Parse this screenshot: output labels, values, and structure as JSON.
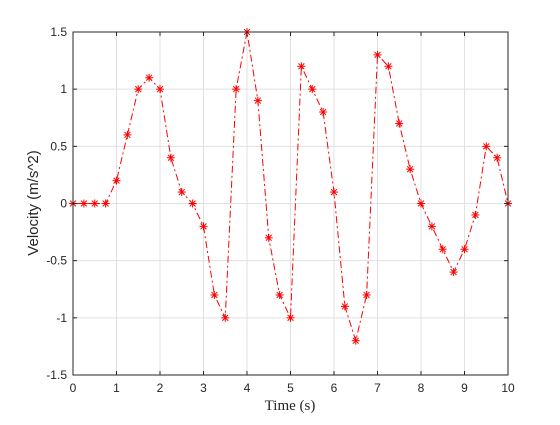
{
  "chart_data": {
    "type": "line",
    "title": "",
    "xlabel": "Time (s)",
    "ylabel": "Velocity (m/s^2)",
    "xlim": [
      0,
      10
    ],
    "ylim": [
      -1.5,
      1.5
    ],
    "xticks": [
      0,
      1,
      2,
      3,
      4,
      5,
      6,
      7,
      8,
      9,
      10
    ],
    "yticks": [
      -1.5,
      -1,
      -0.5,
      0,
      0.5,
      1,
      1.5
    ],
    "grid": true,
    "line_style": "dash-dot",
    "marker": "asterisk",
    "colors": {
      "series": "#ff0000",
      "grid": "#e1e1e1",
      "axes": "#262626",
      "background": "#ffffff"
    },
    "series": [
      {
        "x": [
          0,
          0.25,
          0.5,
          0.75,
          1,
          1.25,
          1.5,
          1.75,
          2,
          2.25,
          2.5,
          2.75,
          3,
          3.25,
          3.5,
          3.75,
          4,
          4.25,
          4.5,
          4.75,
          5,
          5.25,
          5.5,
          5.75,
          6,
          6.25,
          6.5,
          6.75,
          7,
          7.25,
          7.5,
          7.75,
          8,
          8.25,
          8.5,
          8.75,
          9,
          9.25,
          9.5,
          9.75,
          10
        ],
        "y": [
          0,
          0,
          0,
          0,
          0.2,
          0.6,
          1.0,
          1.1,
          1.0,
          0.4,
          0.1,
          0,
          -0.2,
          -0.8,
          -1.0,
          1.0,
          1.5,
          0.9,
          -0.3,
          -0.8,
          -1.0,
          1.2,
          1.0,
          0.8,
          0.1,
          -0.9,
          -1.2,
          -0.8,
          1.3,
          1.2,
          0.7,
          0.3,
          0,
          -0.2,
          -0.4,
          -0.6,
          -0.4,
          -0.1,
          0.5,
          0.4,
          0
        ]
      }
    ]
  }
}
